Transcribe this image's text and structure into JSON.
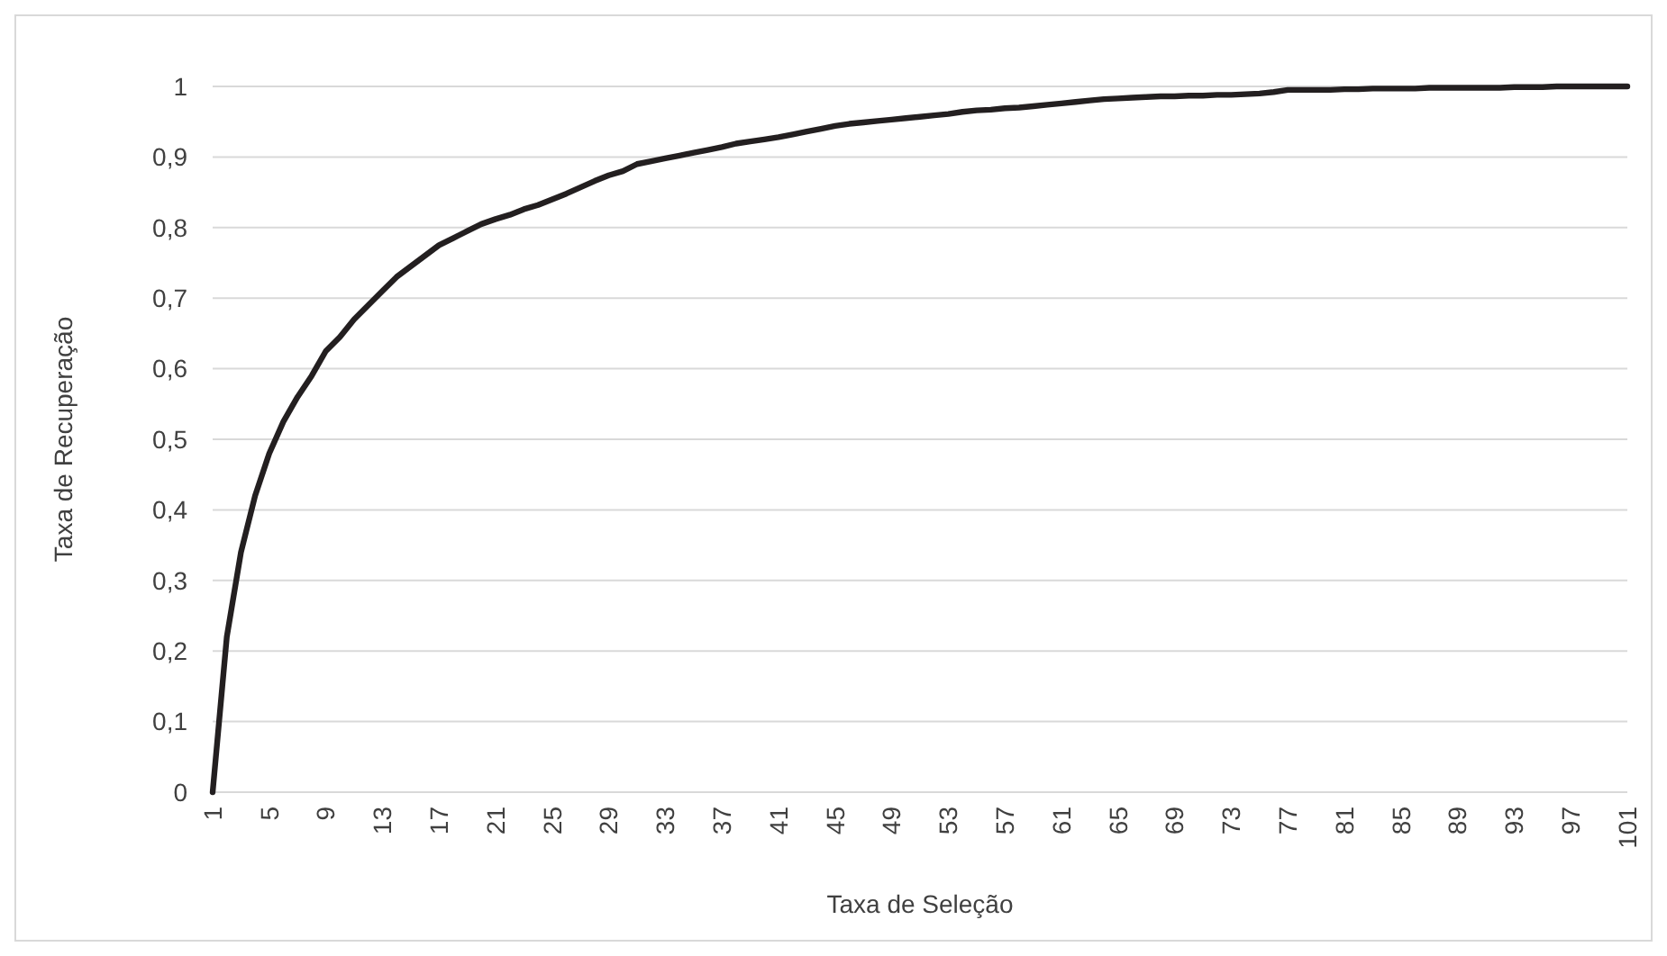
{
  "chart_data": {
    "type": "line",
    "xlabel": "Taxa de Seleção",
    "ylabel": "Taxa de Recuperação",
    "categories": [
      "1",
      null,
      null,
      null,
      "5",
      null,
      null,
      null,
      "9",
      null,
      null,
      null,
      "13",
      null,
      null,
      null,
      "17",
      null,
      null,
      null,
      "21",
      null,
      null,
      null,
      "25",
      null,
      null,
      null,
      "29",
      null,
      null,
      null,
      "33",
      null,
      null,
      null,
      "37",
      null,
      null,
      null,
      "41",
      null,
      null,
      null,
      "45",
      null,
      null,
      null,
      "49",
      null,
      null,
      null,
      "53",
      null,
      null,
      null,
      "57",
      null,
      null,
      null,
      "61",
      null,
      null,
      null,
      "65",
      null,
      null,
      null,
      "69",
      null,
      null,
      null,
      "73",
      null,
      null,
      null,
      "77",
      null,
      null,
      null,
      "81",
      null,
      null,
      null,
      "85",
      null,
      null,
      null,
      "89",
      null,
      null,
      null,
      "93",
      null,
      null,
      null,
      "97",
      null,
      null,
      null,
      "101"
    ],
    "series": [
      {
        "color": "#231f20",
        "values": [
          0,
          0.22,
          0.34,
          0.42,
          0.48,
          0.525,
          0.56,
          0.59,
          0.625,
          0.645,
          0.67,
          0.69,
          0.71,
          0.73,
          0.745,
          0.76,
          0.775,
          0.785,
          0.795,
          0.805,
          0.812,
          0.818,
          0.826,
          0.832,
          0.84,
          0.848,
          0.857,
          0.866,
          0.874,
          0.88,
          0.89,
          0.894,
          0.898,
          0.902,
          0.906,
          0.91,
          0.914,
          0.919,
          0.922,
          0.925,
          0.928,
          0.932,
          0.936,
          0.94,
          0.944,
          0.947,
          0.949,
          0.951,
          0.953,
          0.955,
          0.957,
          0.959,
          0.961,
          0.964,
          0.966,
          0.967,
          0.969,
          0.97,
          0.972,
          0.974,
          0.976,
          0.978,
          0.98,
          0.982,
          0.983,
          0.984,
          0.985,
          0.986,
          0.986,
          0.987,
          0.987,
          0.988,
          0.988,
          0.989,
          0.99,
          0.992,
          0.995,
          0.995,
          0.995,
          0.995,
          0.996,
          0.996,
          0.997,
          0.997,
          0.997,
          0.997,
          0.998,
          0.998,
          0.998,
          0.998,
          0.998,
          0.998,
          0.999,
          0.999,
          0.999,
          1,
          1,
          1,
          1,
          1,
          1
        ]
      }
    ],
    "ylim": [
      0,
      1
    ],
    "yticks": [
      0,
      {
        "value": 0.1,
        "label": "0,1"
      },
      {
        "value": 0.2,
        "label": "0,2"
      },
      {
        "value": 0.3,
        "label": "0,3"
      },
      {
        "value": 0.4,
        "label": "0,4"
      },
      {
        "value": 0.5,
        "label": "0,5"
      },
      {
        "value": 0.6,
        "label": "0,6"
      },
      {
        "value": 0.7,
        "label": "0,7"
      },
      {
        "value": 0.8,
        "label": "0,8"
      },
      {
        "value": 0.9,
        "label": "0,9"
      },
      1
    ],
    "grid": "y",
    "marker": "none",
    "line_style": "solid"
  }
}
